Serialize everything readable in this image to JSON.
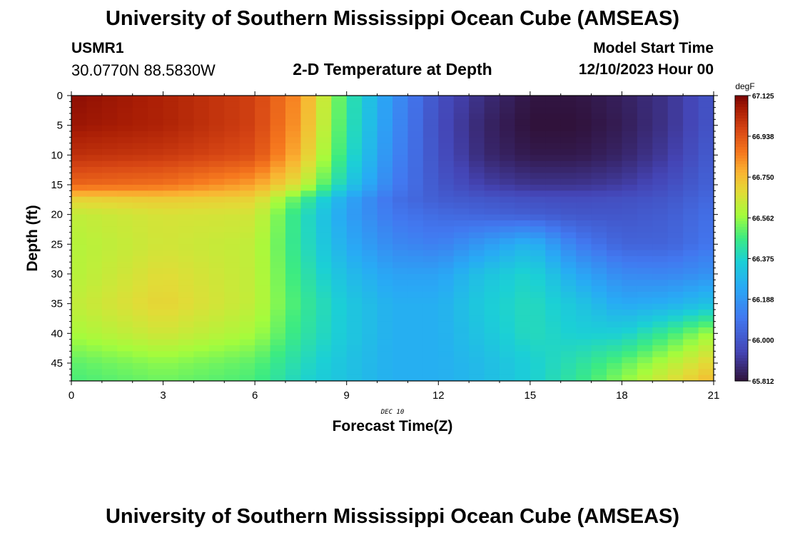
{
  "header": {
    "title": "University of Southern Mississippi Ocean Cube (AMSEAS)",
    "station_id": "USMR1",
    "coordinates": "30.0770N  88.5830W",
    "subtitle": "2-D Temperature at Depth",
    "model_start_label": "Model Start Time",
    "model_start_value": "12/10/2023 Hour 00"
  },
  "footer": {
    "title": "University of Southern Mississippi Ocean Cube (AMSEAS)"
  },
  "chart_data": {
    "type": "heatmap",
    "title": "2-D Temperature at Depth",
    "xlabel": "Forecast Time(Z)",
    "ylabel": "Depth (ft)",
    "date_annotation": "DEC 10",
    "xlim": [
      0,
      21
    ],
    "ylim": [
      0,
      48
    ],
    "x_ticks": [
      0,
      3,
      6,
      9,
      12,
      15,
      18,
      21
    ],
    "y_ticks": [
      0,
      5,
      10,
      15,
      20,
      25,
      30,
      35,
      40,
      45
    ],
    "colorbar": {
      "unit": "degF",
      "min": 65.812,
      "max": 67.125,
      "labels": [
        "67.125",
        "66.938",
        "66.750",
        "66.562",
        "66.375",
        "66.188",
        "66.000",
        "65.812"
      ]
    },
    "x_hours": [
      0,
      3,
      6,
      7.5,
      9,
      10.5,
      12,
      13.5,
      15,
      16.5,
      18,
      19.5,
      21
    ],
    "depths_ft": [
      0,
      5,
      10,
      15,
      17.5,
      20,
      25,
      30,
      35,
      40,
      45,
      48
    ],
    "values_degF": [
      [
        67.1,
        67.05,
        66.98,
        66.82,
        66.45,
        66.18,
        65.98,
        65.88,
        65.82,
        65.82,
        65.85,
        65.9,
        66.0
      ],
      [
        67.08,
        67.05,
        66.98,
        66.8,
        66.44,
        66.17,
        65.97,
        65.86,
        65.81,
        65.81,
        65.84,
        65.9,
        66.0
      ],
      [
        67.02,
        67.0,
        66.95,
        66.76,
        66.42,
        66.15,
        65.98,
        65.87,
        65.83,
        65.83,
        65.86,
        65.92,
        66.02
      ],
      [
        66.9,
        66.88,
        66.8,
        66.65,
        66.35,
        66.12,
        66.0,
        65.93,
        65.9,
        65.9,
        65.92,
        65.97,
        66.04
      ],
      [
        66.7,
        66.72,
        66.7,
        66.48,
        66.24,
        66.08,
        66.02,
        66.0,
        65.98,
        65.97,
        65.98,
        66.0,
        66.06
      ],
      [
        66.62,
        66.66,
        66.65,
        66.42,
        66.22,
        66.1,
        66.06,
        66.04,
        66.02,
        66.0,
        66.0,
        66.02,
        66.08
      ],
      [
        66.6,
        66.65,
        66.62,
        66.42,
        66.25,
        66.15,
        66.12,
        66.2,
        66.28,
        66.12,
        66.04,
        66.04,
        66.1
      ],
      [
        66.6,
        66.68,
        66.62,
        66.44,
        66.3,
        66.22,
        66.22,
        66.32,
        66.38,
        66.24,
        66.15,
        66.14,
        66.18
      ],
      [
        66.62,
        66.7,
        66.62,
        66.46,
        66.34,
        66.26,
        66.26,
        66.35,
        66.4,
        66.33,
        66.24,
        66.26,
        66.32
      ],
      [
        66.58,
        66.65,
        66.58,
        66.44,
        66.34,
        66.26,
        66.26,
        66.33,
        66.4,
        66.36,
        66.36,
        66.46,
        66.58
      ],
      [
        66.5,
        66.55,
        66.5,
        66.4,
        66.32,
        66.26,
        66.26,
        66.3,
        66.36,
        66.42,
        66.5,
        66.6,
        66.7
      ],
      [
        66.48,
        66.52,
        66.48,
        66.38,
        66.32,
        66.26,
        66.26,
        66.3,
        66.36,
        66.44,
        66.55,
        66.66,
        66.76
      ]
    ]
  }
}
